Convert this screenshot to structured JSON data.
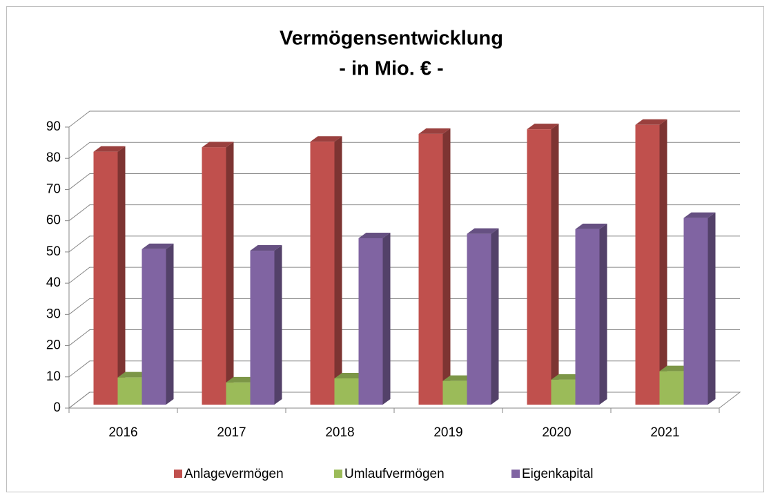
{
  "chart_data": {
    "type": "bar3d",
    "title": "Vermögensentwicklung",
    "subtitle": "- in Mio. € -",
    "categories": [
      "2016",
      "2017",
      "2018",
      "2019",
      "2020",
      "2021"
    ],
    "series": [
      {
        "name": "Anlagevermögen",
        "color": "#c0504d",
        "values": [
          81,
          82.4,
          84.2,
          86.7,
          88.2,
          89.6
        ]
      },
      {
        "name": "Umlaufvermögen",
        "color": "#9bbb59",
        "values": [
          8.7,
          7.1,
          8.4,
          7.6,
          8,
          10.7
        ]
      },
      {
        "name": "Eigenkapital",
        "color": "#8064a2",
        "values": [
          49.8,
          49.3,
          53.3,
          54.7,
          56.2,
          59.8
        ]
      }
    ],
    "ylim": [
      0,
      90
    ],
    "yticks": [
      0,
      10,
      20,
      30,
      40,
      50,
      60,
      70,
      80,
      90
    ],
    "grid": true,
    "legend": "bottom"
  }
}
